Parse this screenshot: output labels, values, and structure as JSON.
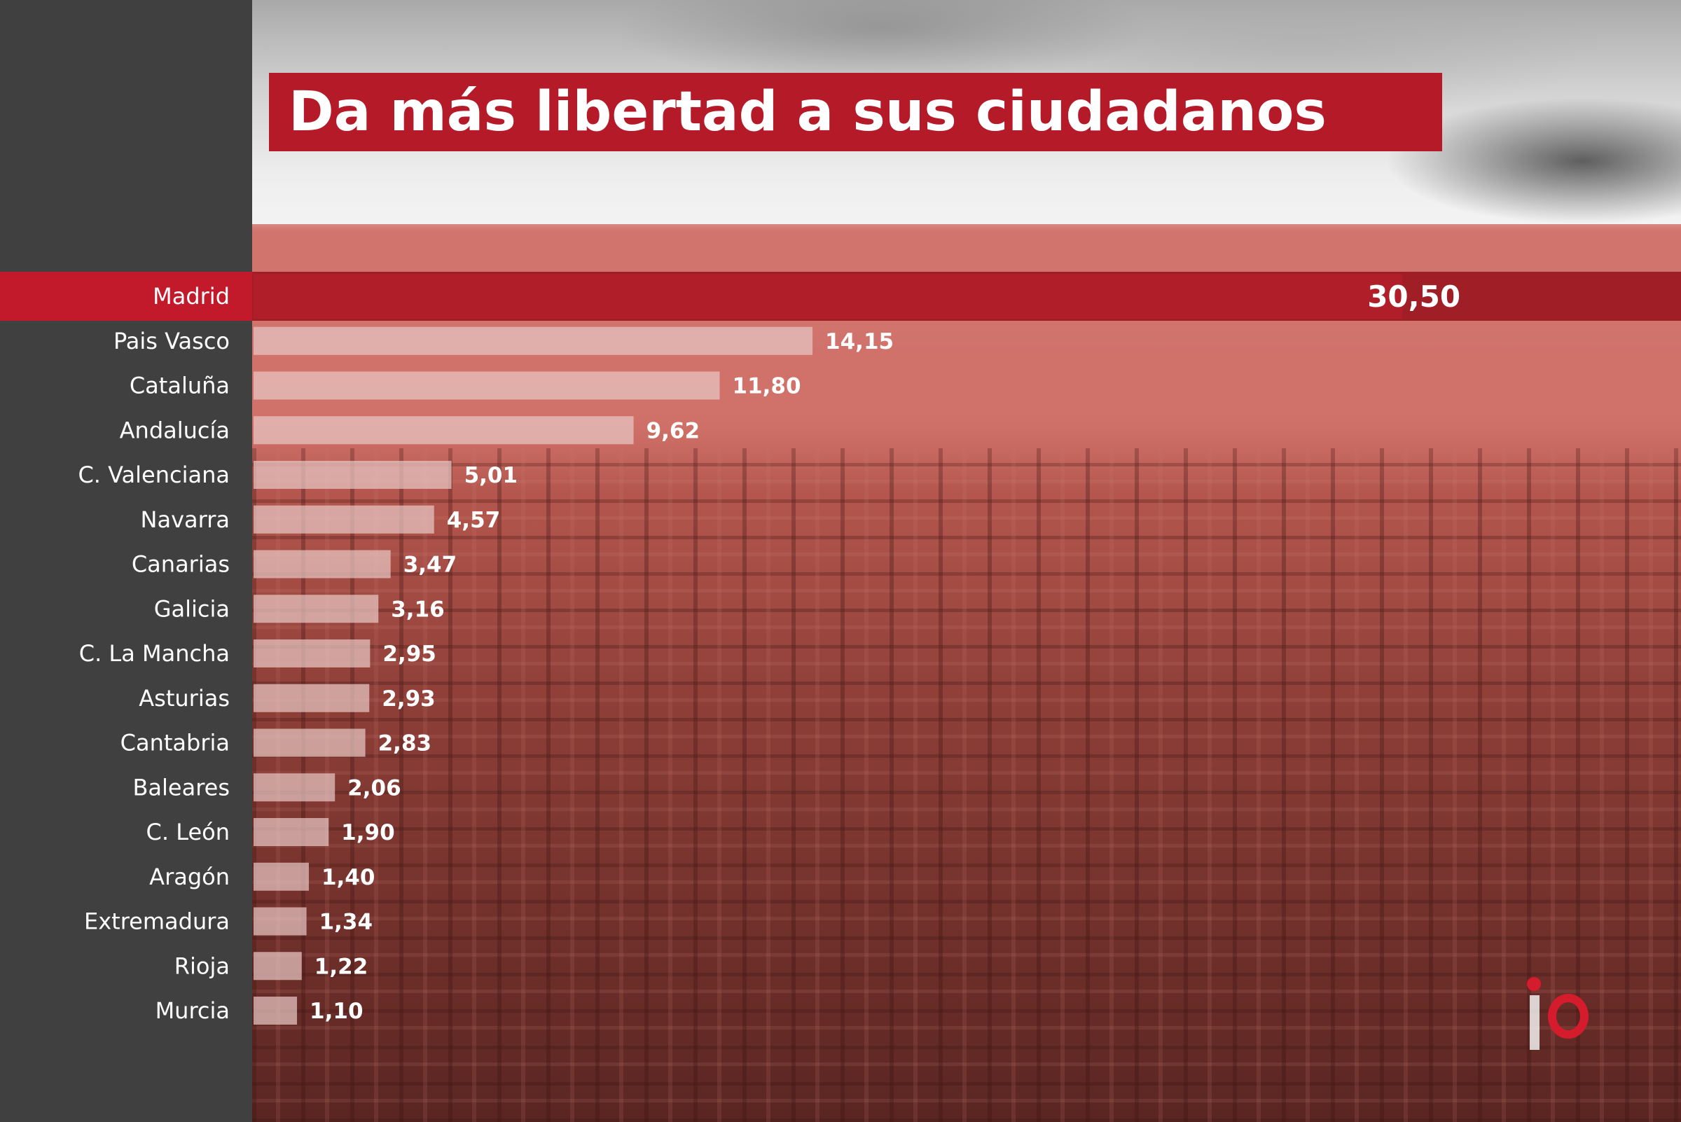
{
  "title": "Da más libertad a sus ciudadanos",
  "colors": {
    "sidebar": "#404040",
    "title_bg": "#b51a29",
    "highlight": "#c21a2b",
    "bar": "#e8c6c3",
    "text": "#ffffff"
  },
  "logo": {
    "name": "io-logo"
  },
  "chart_data": {
    "type": "bar",
    "orientation": "horizontal",
    "title": "Da más libertad a sus ciudadanos",
    "categories": [
      "Madrid",
      "Pais Vasco",
      "Cataluña",
      "Andalucía",
      "C. Valenciana",
      "Navarra",
      "Canarias",
      "Galicia",
      "C. La Mancha",
      "Asturias",
      "Cantabria",
      "Baleares",
      "C. León",
      "Aragón",
      "Extremadura",
      "Rioja",
      "Murcia"
    ],
    "values": [
      30.5,
      14.15,
      11.8,
      9.62,
      5.01,
      4.57,
      3.47,
      3.16,
      2.95,
      2.93,
      2.83,
      2.06,
      1.9,
      1.4,
      1.34,
      1.22,
      1.1
    ],
    "value_labels": [
      "30,50",
      "14,15",
      "11,80",
      "9,62",
      "5,01",
      "4,57",
      "3,47",
      "3,16",
      "2,95",
      "2,93",
      "2,83",
      "2,06",
      "1,90",
      "1,40",
      "1,34",
      "1,22",
      "1,10"
    ],
    "highlight": "Madrid",
    "xlabel": "",
    "ylabel": "",
    "grid": false,
    "legend": "none"
  }
}
